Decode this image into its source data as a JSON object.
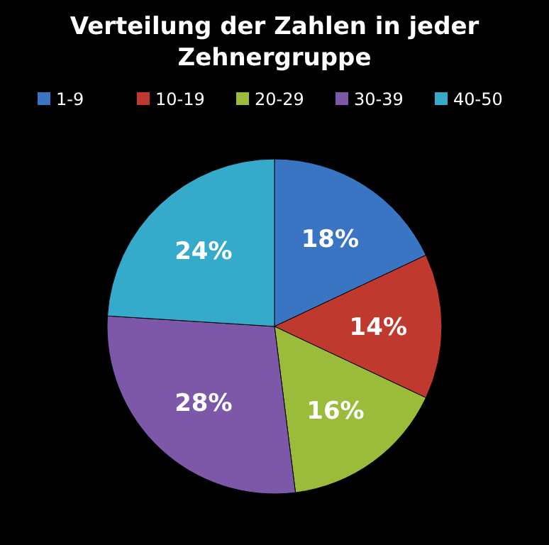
{
  "chart_data": {
    "type": "pie",
    "title": "Verteilung der Zahlen in jeder Zehnergruppe",
    "categories": [
      "1-9",
      "10-19",
      "20-29",
      "30-39",
      "40-50"
    ],
    "values": [
      18,
      14,
      16,
      28,
      24
    ],
    "value_labels": [
      "18%",
      "14%",
      "16%",
      "28%",
      "24%"
    ],
    "colors": [
      "#3a75c4",
      "#c0392f",
      "#9bbb3b",
      "#7d58a8",
      "#36aacb"
    ],
    "legend": "top"
  }
}
